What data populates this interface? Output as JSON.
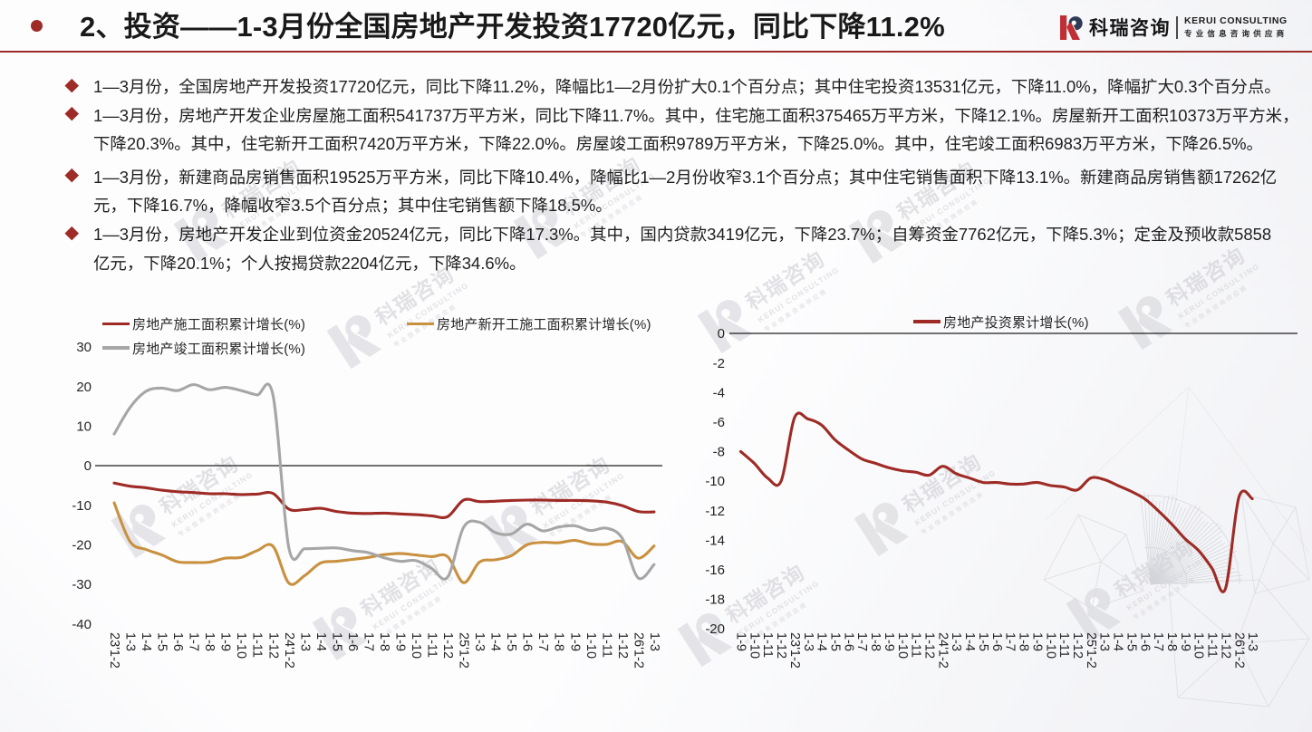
{
  "header": {
    "title": "2、投资——1-3月份全国房地产开发投资17720亿元，同比下降11.2%",
    "accent_color": "#9E2B28",
    "logo": {
      "name_cn": "科瑞咨询",
      "name_en": "KERUI CONSULTING",
      "tagline": "专业信息咨询供应商",
      "mark_red": "#BE2F36",
      "mark_navy": "#2E3A56"
    }
  },
  "bullets": [
    {
      "lines": [
        "1—3月份，全国房地产开发投资17720亿元，同比下降11.2%，降幅比1—2月份扩大0.1个百分点；其中住宅投资13531亿元，下降11.0%，降幅扩大0.3个百分点。"
      ]
    },
    {
      "lines": [
        "1—3月份，房地产开发企业房屋施工面积541737万平方米，同比下降11.7%。其中，住宅施工面积375465万平方米，下降12.1%。房屋新开工面积10373万平方米，",
        "下降20.3%。其中，住宅新开工面积7420万平方米，下降22.0%。房屋竣工面积9789万平方米，下降25.0%。其中，住宅竣工面积6983万平方米，下降26.5%。"
      ]
    },
    {
      "lines": [
        "1—3月份，新建商品房销售面积19525万平方米，同比下降10.4%，降幅比1—2月份收窄3.1个百分点；其中住宅销售面积下降13.1%。新建商品房销售额17262亿",
        "元，下降16.7%，降幅收窄3.5个百分点；其中住宅销售额下降18.5%。"
      ]
    },
    {
      "lines": [
        "1—3月份，房地产开发企业到位资金20524亿元，同比下降17.3%。其中，国内贷款3419亿元，下降23.7%；自筹资金7762亿元，下降5.3%；定金及预收款5858",
        "亿元，下降20.1%；个人按揭贷款2204亿元，下降34.6%。"
      ]
    }
  ],
  "watermark": {
    "name_cn": "科瑞咨询",
    "name_en": "KERUI CONSULTING",
    "tagline": "专业信息咨询供应商"
  },
  "chart_data": [
    {
      "type": "line",
      "title": "",
      "legend_position": "top",
      "grid": false,
      "ylim": [
        -40,
        30
      ],
      "y_ticks": [
        30,
        20,
        10,
        0,
        -10,
        -20,
        -30,
        -40
      ],
      "categories": [
        "23'1-2",
        "1-3",
        "1-4",
        "1-5",
        "1-6",
        "1-7",
        "1-8",
        "1-9",
        "1-10",
        "1-11",
        "1-12",
        "24'1-2",
        "1-3",
        "1-4",
        "1-5",
        "1-6",
        "1-7",
        "1-8",
        "1-9",
        "1-10",
        "1-11",
        "1-12",
        "25'1-2",
        "1-3",
        "1-4",
        "1-5",
        "1-6",
        "1-7",
        "1-8",
        "1-9",
        "1-10",
        "1-11",
        "1-12",
        "26'1-2",
        "1-3"
      ],
      "series": [
        {
          "name": "房地产施工面积累计增长(%)",
          "color": "#9E2B25",
          "values": [
            -4.4,
            -5.2,
            -5.6,
            -6.2,
            -6.6,
            -6.8,
            -7.1,
            -7.1,
            -7.3,
            -7.2,
            -7.0,
            -11.0,
            -11.1,
            -10.8,
            -11.6,
            -12.0,
            -12.1,
            -12.0,
            -12.2,
            -12.4,
            -12.7,
            -12.9,
            -8.7,
            -9.1,
            -9.0,
            -8.8,
            -8.7,
            -8.7,
            -8.8,
            -8.8,
            -8.9,
            -9.2,
            -10.1,
            -11.6,
            -11.7
          ]
        },
        {
          "name": "房地产新开工施工面积累计增长(%)",
          "color": "#C9913F",
          "values": [
            -9.4,
            -19.2,
            -21.2,
            -22.6,
            -24.3,
            -24.5,
            -24.4,
            -23.4,
            -23.2,
            -21.5,
            -20.4,
            -29.7,
            -27.8,
            -24.6,
            -24.2,
            -23.7,
            -23.2,
            -22.5,
            -22.2,
            -22.6,
            -23.0,
            -23.0,
            -29.6,
            -24.4,
            -23.8,
            -22.8,
            -20.0,
            -19.4,
            -19.5,
            -18.9,
            -19.8,
            -19.9,
            -19.2,
            -23.4,
            -20.3
          ]
        },
        {
          "name": "房地产竣工面积累计增长(%)",
          "color": "#A6A6A6",
          "values": [
            8.0,
            14.7,
            18.8,
            19.6,
            19.0,
            20.5,
            19.2,
            19.8,
            19.0,
            17.9,
            17.8,
            -20.8,
            -21.0,
            -20.9,
            -20.8,
            -21.5,
            -22.0,
            -23.3,
            -24.2,
            -24.0,
            -26.0,
            -28.2,
            -15.6,
            -14.3,
            -16.9,
            -17.3,
            -14.8,
            -16.5,
            -15.5,
            -15.2,
            -16.4,
            -15.8,
            -18.4,
            -28.4,
            -25.0
          ]
        }
      ]
    },
    {
      "type": "line",
      "title": "",
      "legend_position": "top",
      "grid": false,
      "ylim": [
        -20,
        0
      ],
      "y_ticks": [
        0,
        -2,
        -4,
        -6,
        -8,
        -10,
        -12,
        -14,
        -16,
        -18,
        -20
      ],
      "categories": [
        "1-9",
        "1-10",
        "1-11",
        "1-12",
        "23'1-2",
        "1-3",
        "1-4",
        "1-5",
        "1-6",
        "1-7",
        "1-8",
        "1-9",
        "1-10",
        "1-11",
        "1-12",
        "24'1-2",
        "1-3",
        "1-4",
        "1-5",
        "1-6",
        "1-7",
        "1-8",
        "1-9",
        "1-10",
        "1-11",
        "1-12",
        "25'1-2",
        "1-3",
        "1-4",
        "1-5",
        "1-6",
        "1-7",
        "1-8",
        "1-9",
        "1-10",
        "1-11",
        "1-12",
        "26'1-2",
        "1-3"
      ],
      "series": [
        {
          "name": "房地产投资累计增长(%)",
          "color": "#9E2B25",
          "values": [
            -8.0,
            -8.8,
            -9.8,
            -10.0,
            -5.7,
            -5.8,
            -6.2,
            -7.2,
            -7.9,
            -8.5,
            -8.8,
            -9.1,
            -9.3,
            -9.4,
            -9.6,
            -9.0,
            -9.5,
            -9.8,
            -10.1,
            -10.1,
            -10.2,
            -10.2,
            -10.1,
            -10.3,
            -10.4,
            -10.6,
            -9.8,
            -9.9,
            -10.3,
            -10.7,
            -11.2,
            -12.0,
            -12.9,
            -13.9,
            -14.7,
            -15.9,
            -17.3,
            -11.1,
            -11.2
          ]
        }
      ]
    }
  ]
}
